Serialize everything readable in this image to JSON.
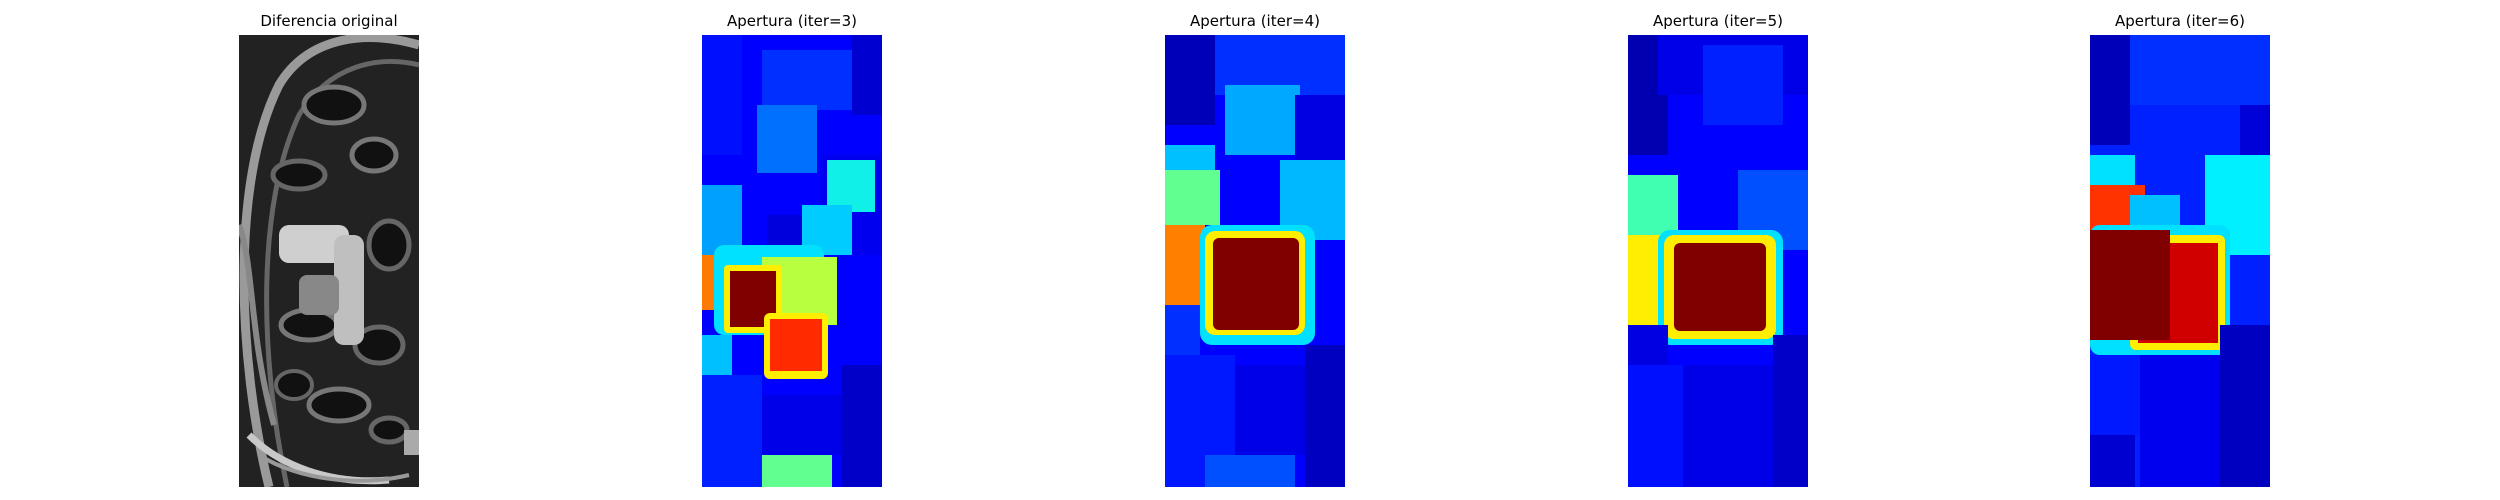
{
  "figure": {
    "panels": [
      {
        "title": "Diferencia original",
        "colormap": "gray"
      },
      {
        "title": "Apertura (iter=3)",
        "colormap": "jet"
      },
      {
        "title": "Apertura (iter=4)",
        "colormap": "jet"
      },
      {
        "title": "Apertura (iter=5)",
        "colormap": "jet"
      },
      {
        "title": "Apertura (iter=6)",
        "colormap": "jet"
      }
    ]
  },
  "colors": {
    "background": "#ffffff",
    "jet_dark_blue": "#00008f",
    "jet_blue": "#0000ff",
    "jet_cyan": "#00ffff",
    "jet_yellow": "#ffff00",
    "jet_red": "#ff0000",
    "jet_dark_red": "#800000"
  }
}
